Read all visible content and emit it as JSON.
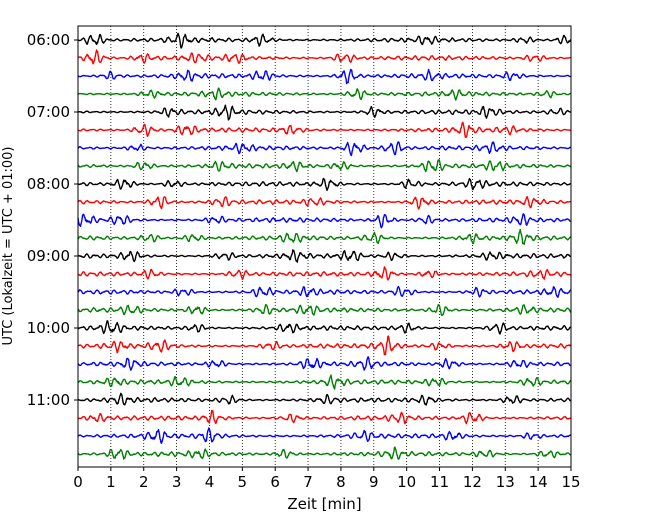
{
  "chart_data": {
    "type": "line",
    "subtype": "helicorder-seismogram",
    "xlabel": "Zeit  [min]",
    "ylabel": "UTC (Lokalzeit = UTC + 01:00)",
    "xlim": [
      0,
      15
    ],
    "x_ticks": [
      "0",
      "1",
      "2",
      "3",
      "4",
      "5",
      "6",
      "7",
      "8",
      "9",
      "10",
      "11",
      "12",
      "13",
      "14",
      "15"
    ],
    "x_tick_values": [
      0,
      1,
      2,
      3,
      4,
      5,
      6,
      7,
      8,
      9,
      10,
      11,
      12,
      13,
      14,
      15
    ],
    "grid": "vertical-dotted",
    "line_minutes": 15,
    "line_count": 24,
    "start_time": "06:00",
    "y_tick_labels": [
      "06:00",
      "07:00",
      "08:00",
      "09:00",
      "10:00",
      "11:00"
    ],
    "y_tick_line_index": [
      0,
      4,
      8,
      12,
      16,
      20
    ],
    "trace_colors": [
      "#000000",
      "#ff0000",
      "#0000ff",
      "#008000"
    ],
    "bursts": [
      [
        [
          0.5,
          1.0
        ],
        [
          3.1,
          0.9
        ],
        [
          5.6,
          0.8
        ],
        [
          10.6,
          0.6
        ],
        [
          13.6,
          0.5
        ],
        [
          14.8,
          0.7
        ]
      ],
      [
        [
          0.5,
          1.2
        ],
        [
          2.0,
          0.6
        ],
        [
          3.6,
          0.6
        ],
        [
          4.8,
          0.7
        ],
        [
          8.1,
          0.9
        ],
        [
          13.9,
          0.6
        ]
      ],
      [
        [
          1.0,
          0.6
        ],
        [
          3.3,
          0.7
        ],
        [
          5.6,
          0.8
        ],
        [
          8.2,
          1.2
        ],
        [
          10.7,
          0.6
        ],
        [
          13.2,
          0.6
        ]
      ],
      [
        [
          2.2,
          0.5
        ],
        [
          4.2,
          0.6
        ],
        [
          8.5,
          0.8
        ],
        [
          11.5,
          0.5
        ],
        [
          14.3,
          0.5
        ]
      ],
      [
        [
          2.8,
          0.6
        ],
        [
          4.5,
          1.0
        ],
        [
          9.0,
          0.7
        ],
        [
          12.5,
          0.8
        ],
        [
          14.6,
          0.6
        ]
      ],
      [
        [
          2.0,
          1.0
        ],
        [
          3.3,
          0.9
        ],
        [
          6.5,
          0.6
        ],
        [
          11.8,
          0.9
        ],
        [
          13.1,
          0.5
        ]
      ],
      [
        [
          1.8,
          0.5
        ],
        [
          5.0,
          0.6
        ],
        [
          8.4,
          1.2
        ],
        [
          9.6,
          1.1
        ],
        [
          12.6,
          0.6
        ]
      ],
      [
        [
          2.0,
          0.7
        ],
        [
          4.3,
          0.6
        ],
        [
          6.6,
          0.6
        ],
        [
          8.0,
          0.7
        ],
        [
          10.8,
          1.1
        ],
        [
          12.7,
          0.7
        ]
      ],
      [
        [
          1.4,
          0.9
        ],
        [
          2.9,
          0.6
        ],
        [
          7.6,
          0.8
        ],
        [
          10.1,
          0.7
        ],
        [
          12.1,
          0.8
        ]
      ],
      [
        [
          2.5,
          1.1
        ],
        [
          4.4,
          0.7
        ],
        [
          7.2,
          0.6
        ],
        [
          10.4,
          0.9
        ],
        [
          13.8,
          0.6
        ]
      ],
      [
        [
          0.2,
          0.9
        ],
        [
          1.3,
          0.8
        ],
        [
          4.2,
          0.5
        ],
        [
          9.3,
          1.0
        ],
        [
          10.6,
          0.6
        ],
        [
          13.5,
          0.7
        ]
      ],
      [
        [
          2.2,
          0.6
        ],
        [
          3.5,
          0.6
        ],
        [
          6.5,
          0.7
        ],
        [
          9.0,
          0.8
        ],
        [
          12.0,
          0.6
        ],
        [
          13.5,
          0.9
        ]
      ],
      [
        [
          1.6,
          0.8
        ],
        [
          4.5,
          0.6
        ],
        [
          6.6,
          0.7
        ],
        [
          8.3,
          0.9
        ],
        [
          9.6,
          0.6
        ],
        [
          12.6,
          0.6
        ]
      ],
      [
        [
          2.2,
          0.6
        ],
        [
          4.9,
          0.7
        ],
        [
          9.3,
          1.0
        ],
        [
          10.7,
          0.6
        ],
        [
          14.1,
          0.5
        ]
      ],
      [
        [
          3.2,
          0.6
        ],
        [
          5.6,
          0.8
        ],
        [
          7.0,
          0.6
        ],
        [
          9.9,
          0.8
        ],
        [
          12.2,
          0.6
        ],
        [
          14.5,
          0.6
        ]
      ],
      [
        [
          1.6,
          0.6
        ],
        [
          3.6,
          0.7
        ],
        [
          5.7,
          0.7
        ],
        [
          7.0,
          0.8
        ],
        [
          11.0,
          0.9
        ],
        [
          13.6,
          0.6
        ]
      ],
      [
        [
          1.0,
          1.0
        ],
        [
          3.6,
          0.6
        ],
        [
          6.4,
          0.7
        ],
        [
          10.0,
          0.6
        ],
        [
          12.8,
          0.8
        ]
      ],
      [
        [
          1.2,
          0.6
        ],
        [
          2.5,
          0.9
        ],
        [
          5.9,
          0.6
        ],
        [
          9.4,
          1.2
        ],
        [
          11.0,
          0.6
        ],
        [
          13.2,
          0.7
        ]
      ],
      [
        [
          1.6,
          0.7
        ],
        [
          4.2,
          0.6
        ],
        [
          7.1,
          0.9
        ],
        [
          8.8,
          0.7
        ],
        [
          11.3,
          0.8
        ],
        [
          13.4,
          0.6
        ]
      ],
      [
        [
          1.1,
          0.6
        ],
        [
          3.1,
          0.7
        ],
        [
          7.8,
          0.9
        ],
        [
          10.9,
          0.7
        ],
        [
          13.8,
          0.7
        ]
      ],
      [
        [
          1.3,
          0.7
        ],
        [
          4.6,
          0.6
        ],
        [
          7.6,
          0.6
        ],
        [
          10.6,
          0.6
        ],
        [
          13.2,
          0.7
        ]
      ],
      [
        [
          0.6,
          0.6
        ],
        [
          4.1,
          0.9
        ],
        [
          6.5,
          0.6
        ],
        [
          9.8,
          0.7
        ],
        [
          12.0,
          1.0
        ]
      ],
      [
        [
          2.4,
          0.9
        ],
        [
          4.0,
          1.0
        ],
        [
          8.7,
          0.7
        ],
        [
          11.4,
          0.6
        ],
        [
          13.8,
          0.5
        ]
      ],
      [
        [
          1.2,
          0.9
        ],
        [
          3.7,
          0.6
        ],
        [
          6.3,
          0.6
        ],
        [
          9.6,
          0.7
        ],
        [
          12.4,
          0.6
        ],
        [
          14.3,
          0.6
        ]
      ]
    ]
  }
}
